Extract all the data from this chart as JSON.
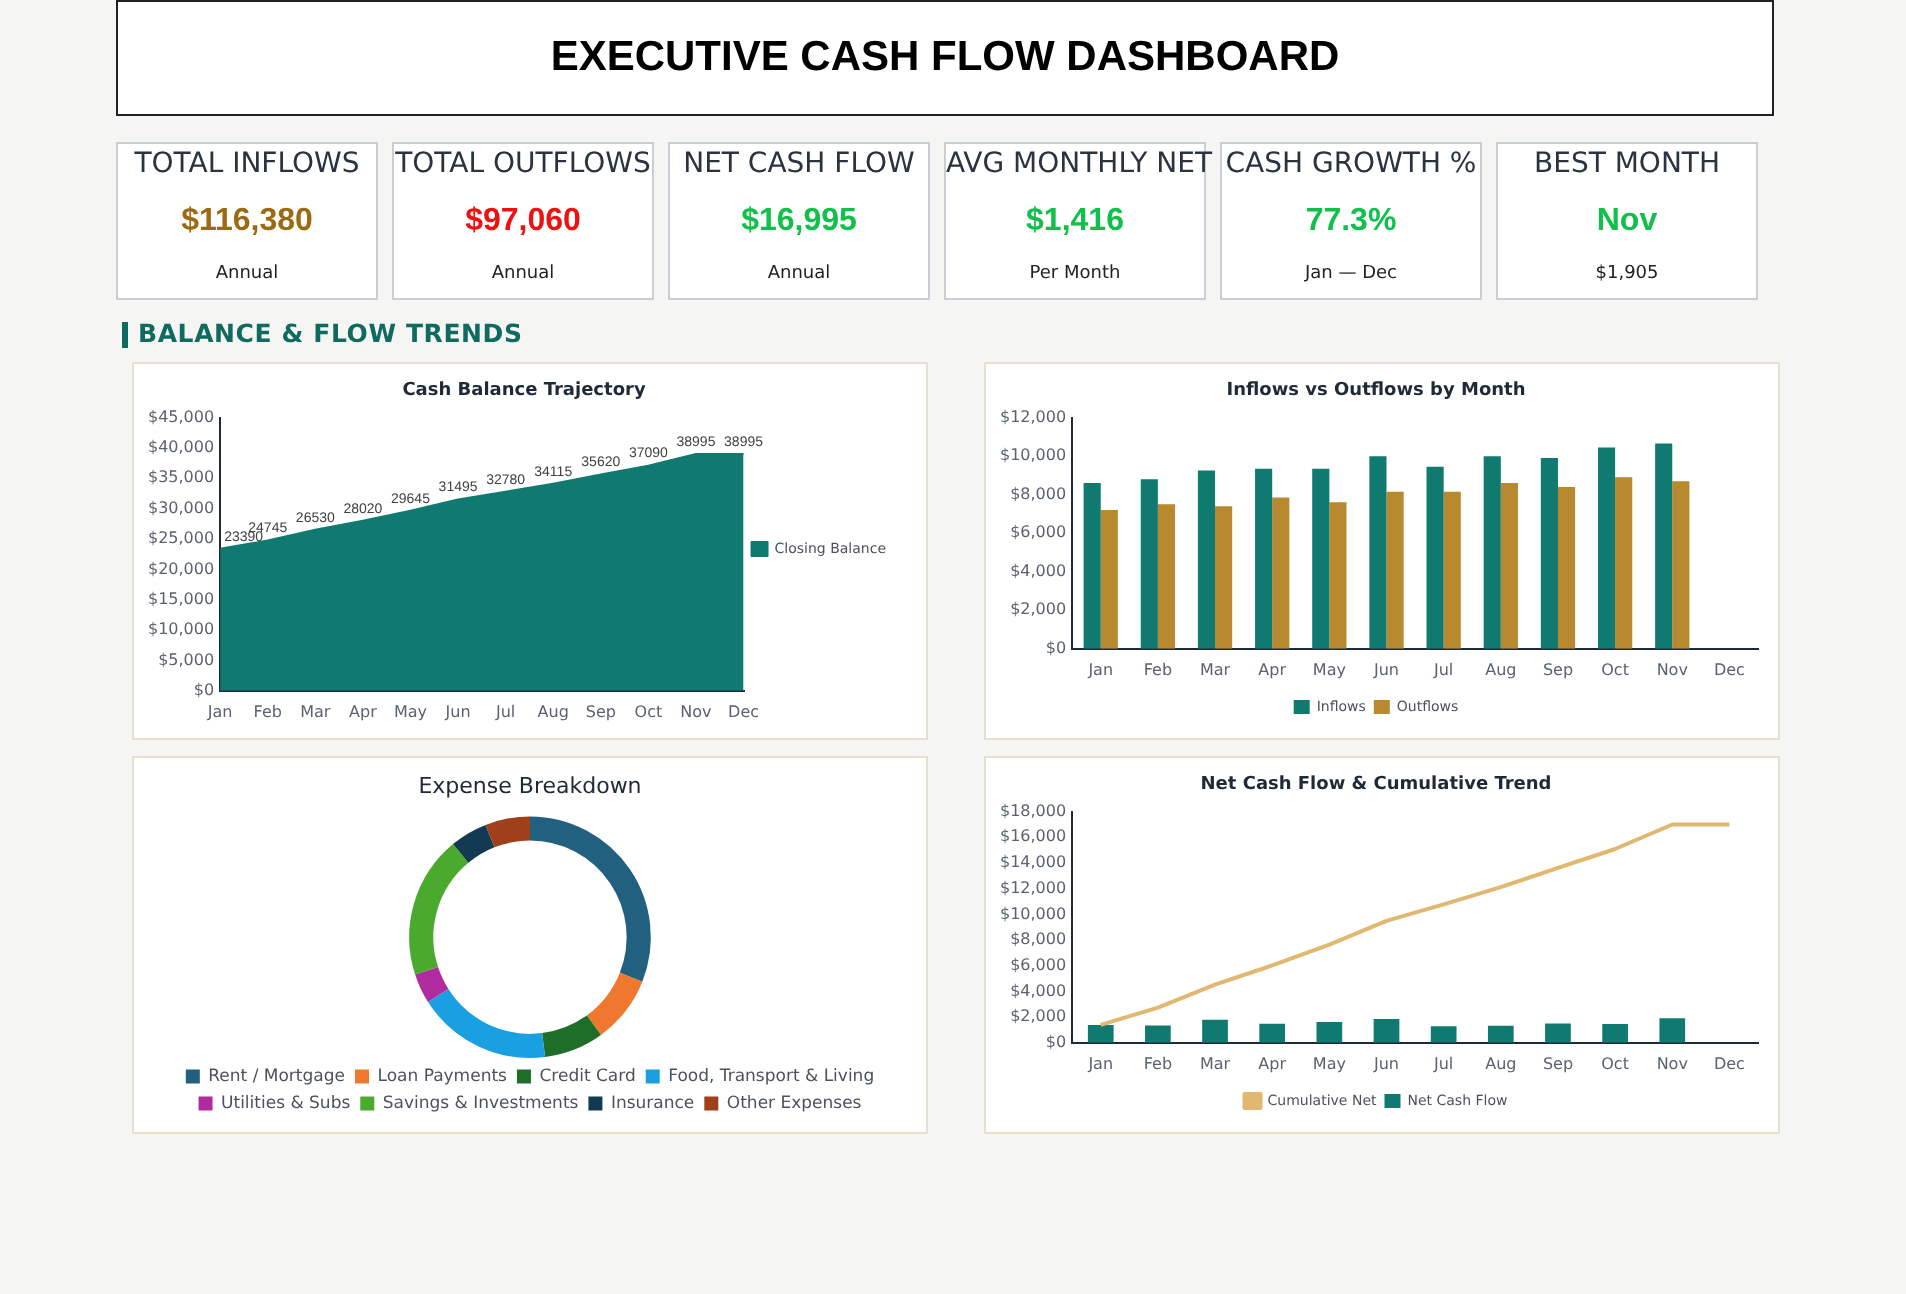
{
  "chart_data": [
    {
      "type": "other",
      "title": "EXECUTIVE CASH FLOW DASHBOARD"
    },
    {
      "type": "other",
      "title": "TOTAL INFLOWS",
      "annotations": [
        "$116,380",
        "Annual"
      ],
      "color": "#9c6a10"
    },
    {
      "type": "other",
      "title": "TOTAL OUTFLOWS",
      "annotations": [
        "$97,060",
        "Annual"
      ],
      "color": "#ee1111"
    },
    {
      "type": "other",
      "title": "NET CASH FLOW",
      "annotations": [
        "$16,995",
        "Annual"
      ],
      "color": "#11c04a"
    },
    {
      "type": "other",
      "title": "AVG MONTHLY NET",
      "annotations": [
        "$1,416",
        "Per Month"
      ],
      "color": "#11c04a"
    },
    {
      "type": "other",
      "title": "CASH GROWTH %",
      "annotations": [
        "77.3%",
        "Jan — Dec"
      ],
      "color": "#11c04a"
    },
    {
      "type": "other",
      "title": "BEST MONTH",
      "annotations": [
        "Nov",
        "$1,905"
      ],
      "color": "#11c04a"
    },
    {
      "type": "other",
      "title": "BALANCE & FLOW TRENDS"
    },
    {
      "type": "area",
      "title": "Cash Balance Trajectory",
      "categories": [
        "Jan",
        "Feb",
        "Mar",
        "Apr",
        "May",
        "Jun",
        "Jul",
        "Aug",
        "Sep",
        "Oct",
        "Nov",
        "Dec"
      ],
      "series": [
        {
          "name": "Closing Balance",
          "color": "#107a70",
          "values": [
            23390,
            24745,
            26530,
            28020,
            29645,
            31495,
            32780,
            34115,
            35620,
            37090,
            38995,
            38995
          ]
        }
      ],
      "ylim": [
        0,
        45000
      ],
      "yticks": [
        {
          "value": 0,
          "label": "$0"
        },
        {
          "value": 5000,
          "label": "$5,000"
        },
        {
          "value": 10000,
          "label": "$10,000"
        },
        {
          "value": 15000,
          "label": "$15,000"
        },
        {
          "value": 20000,
          "label": "$20,000"
        },
        {
          "value": 25000,
          "label": "$25,000"
        },
        {
          "value": 30000,
          "label": "$30,000"
        },
        {
          "value": 35000,
          "label": "$35,000"
        },
        {
          "value": 40000,
          "label": "$40,000"
        },
        {
          "value": 45000,
          "label": "$45,000"
        }
      ],
      "legend": "right",
      "data_labels": true,
      "grid": false
    },
    {
      "type": "bar",
      "title": "Inflows vs Outflows by Month",
      "categories": [
        "Jan",
        "Feb",
        "Mar",
        "Apr",
        "May",
        "Jun",
        "Jul",
        "Aug",
        "Sep",
        "Oct",
        "Nov",
        "Dec"
      ],
      "series": [
        {
          "name": "Inflows",
          "color": "#107a70",
          "values": [
            8600,
            8800,
            9250,
            9350,
            9350,
            10000,
            9450,
            10000,
            9900,
            10450,
            10650,
            null
          ]
        },
        {
          "name": "Outflows",
          "color": "#b8892e",
          "values": [
            7200,
            7500,
            7400,
            7850,
            7600,
            8150,
            8150,
            8600,
            8400,
            8900,
            8700,
            null
          ]
        }
      ],
      "ylim": [
        0,
        12000
      ],
      "yticks": [
        {
          "value": 0,
          "label": "$0"
        },
        {
          "value": 2000,
          "label": "$2,000"
        },
        {
          "value": 4000,
          "label": "$4,000"
        },
        {
          "value": 6000,
          "label": "$6,000"
        },
        {
          "value": 8000,
          "label": "$8,000"
        },
        {
          "value": 10000,
          "label": "$10,000"
        },
        {
          "value": 12000,
          "label": "$12,000"
        }
      ],
      "legend": "bottom",
      "grid": false
    },
    {
      "type": "donut",
      "title": "Expense Breakdown",
      "categories": [
        "Rent / Mortgage",
        "Loan Payments",
        "Credit Card",
        "Food, Transport & Living",
        "Utilities & Subs",
        "Savings & Investments",
        "Insurance",
        "Other Expenses"
      ],
      "values": [
        31,
        9,
        8,
        18,
        4,
        19,
        5,
        6
      ],
      "colors": [
        "#22607f",
        "#f0782e",
        "#1e6e2a",
        "#1aa0e0",
        "#b02aa0",
        "#4aaa2e",
        "#123a52",
        "#a0401a"
      ],
      "legend": "bottom"
    },
    {
      "type": "bar",
      "title": "Net Cash Flow & Cumulative Trend",
      "categories": [
        "Jan",
        "Feb",
        "Mar",
        "Apr",
        "May",
        "Jun",
        "Jul",
        "Aug",
        "Sep",
        "Oct",
        "Nov",
        "Dec"
      ],
      "series": [
        {
          "name": "Net Cash Flow",
          "color": "#107a70",
          "values": [
            1390,
            1355,
            1785,
            1490,
            1625,
            1850,
            1285,
            1335,
            1505,
            1470,
            1905,
            null
          ]
        },
        {
          "name": "Cumulative Net",
          "type": "line",
          "color": "#e0b870",
          "values": [
            1390,
            2745,
            4530,
            6020,
            7645,
            9495,
            10780,
            12115,
            13620,
            15090,
            16995,
            16995
          ]
        }
      ],
      "ylim": [
        0,
        18000
      ],
      "yticks": [
        {
          "value": 0,
          "label": "$0"
        },
        {
          "value": 2000,
          "label": "$2,000"
        },
        {
          "value": 4000,
          "label": "$4,000"
        },
        {
          "value": 6000,
          "label": "$6,000"
        },
        {
          "value": 8000,
          "label": "$8,000"
        },
        {
          "value": 10000,
          "label": "$10,000"
        },
        {
          "value": 12000,
          "label": "$12,000"
        },
        {
          "value": 14000,
          "label": "$14,000"
        },
        {
          "value": 16000,
          "label": "$16,000"
        },
        {
          "value": 18000,
          "label": "$18,000"
        }
      ],
      "legend": "bottom",
      "grid": false
    }
  ]
}
